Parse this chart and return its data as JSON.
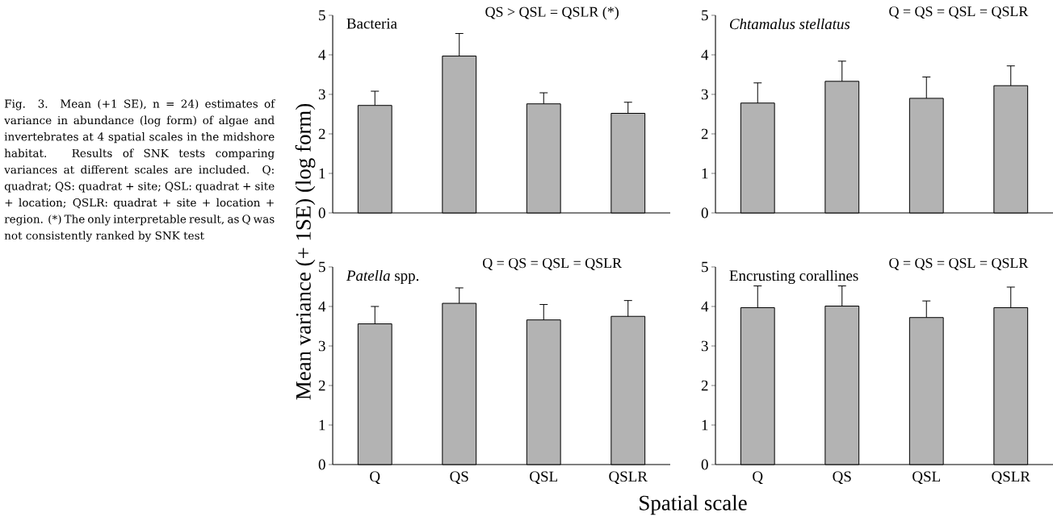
{
  "chart_data": [
    {
      "type": "bar",
      "title": "Bacteria",
      "ylabel": "Mean variance (+ 1SE) (log form)",
      "categories": [
        null,
        null,
        null,
        null
      ],
      "values": [
        2.72,
        3.97,
        2.76,
        2.52
      ],
      "errors": [
        [
          2.72,
          3.08
        ],
        [
          3.97,
          4.54
        ],
        [
          2.76,
          3.04
        ],
        [
          2.52,
          2.8
        ]
      ],
      "color": "#b3b3b3",
      "ylim": [
        0,
        5
      ],
      "yticks": [
        0,
        1,
        2,
        3,
        4,
        5
      ],
      "tick_labels": "y",
      "annotations": [
        "QS > QSL = QSLR (*)",
        "Fig. 3. Mean (+1 SE), n = 24) estimates of variance in abundance (log form) of algae and invertebrates at 4 spatial scales in the midshore habitat. Results of SNK tests comparing variances at different scales are included. Q: quadrat; QS: quadrat + site; QSL: quadrat + site + location; QSLR: quadrat + site + location + region. (*) The only interpretable result, as Q was not consistently ranked by SNK test"
      ]
    },
    {
      "type": "bar",
      "title": "*Chtamalus stellatus*",
      "categories": [
        null,
        null,
        null,
        null
      ],
      "values": [
        2.78,
        3.33,
        2.9,
        3.22
      ],
      "errors": [
        [
          2.78,
          3.29
        ],
        [
          3.33,
          3.84
        ],
        [
          2.9,
          3.44
        ],
        [
          3.22,
          3.72
        ]
      ],
      "color": "#b3b3b3",
      "ylim": [
        0,
        5
      ],
      "yticks": [
        0,
        1,
        2,
        3,
        4,
        5
      ],
      "tick_labels": "y",
      "annotations": [
        "Q = QS = QSL = QSLR"
      ]
    },
    {
      "type": "bar",
      "title": "*Patella* spp.",
      "xlabel": "Spatial scale",
      "categories": [
        "Q",
        "QS",
        "QSL",
        "QSLR"
      ],
      "values": [
        3.56,
        4.08,
        3.66,
        3.75
      ],
      "errors": [
        [
          3.56,
          4.0
        ],
        [
          4.08,
          4.47
        ],
        [
          3.66,
          4.05
        ],
        [
          3.75,
          4.15
        ]
      ],
      "color": "#b3b3b3",
      "ylim": [
        0,
        5
      ],
      "yticks": [
        0,
        1,
        2,
        3,
        4,
        5
      ],
      "annotations": [
        "Q = QS = QSL = QSLR"
      ]
    },
    {
      "type": "bar",
      "title": "Encrusting corallines",
      "categories": [
        "Q",
        "QS",
        "QSL",
        "QSLR"
      ],
      "values": [
        3.97,
        4.01,
        3.72,
        3.97
      ],
      "errors": [
        [
          3.97,
          4.52
        ],
        [
          4.01,
          4.52
        ],
        [
          3.72,
          4.14
        ],
        [
          3.97,
          4.49
        ]
      ],
      "color": "#b3b3b3",
      "ylim": [
        0,
        5
      ],
      "yticks": [
        0,
        1,
        2,
        3,
        4,
        5
      ],
      "annotations": [
        "Q = QS = QSL = QSLR"
      ]
    }
  ]
}
